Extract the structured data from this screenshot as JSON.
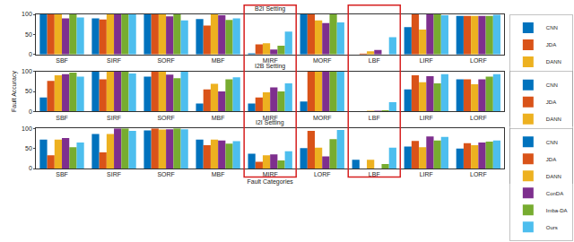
{
  "chart_data": [
    {
      "type": "bar",
      "title": "B2I Setting",
      "categories": [
        "SBF",
        "SIRF",
        "SORF",
        "MBF",
        "MIRF",
        "MORF",
        "LBF",
        "LIRF",
        "LORF"
      ],
      "series": [
        {
          "name": "CNN",
          "color": "#0072BD",
          "values": [
            100,
            90,
            100,
            88,
            3,
            100,
            0,
            68,
            96
          ]
        },
        {
          "name": "JDA",
          "color": "#D95319",
          "values": [
            100,
            87,
            100,
            72,
            25,
            100,
            2,
            100,
            96
          ]
        },
        {
          "name": "DANN",
          "color": "#EDB120",
          "values": [
            100,
            100,
            100,
            100,
            28,
            85,
            8,
            62,
            96
          ]
        },
        {
          "name": "ConDA",
          "color": "#7E2F8E",
          "values": [
            90,
            100,
            95,
            98,
            12,
            78,
            11,
            100,
            96
          ]
        },
        {
          "name": "Imba-DA",
          "color": "#77AC30",
          "values": [
            100,
            100,
            100,
            86,
            22,
            100,
            0,
            100,
            96
          ]
        },
        {
          "name": "Ours",
          "color": "#4DBEEE",
          "values": [
            92,
            100,
            85,
            90,
            57,
            80,
            43,
            98,
            99
          ]
        }
      ],
      "ylim": [
        0,
        100
      ],
      "yticks": [
        0,
        50,
        100
      ],
      "grid": false,
      "legend": "right"
    },
    {
      "type": "bar",
      "title": "I2B Setting",
      "y_label": "Fault Accuracy",
      "categories": [
        "SBF",
        "SIRF",
        "SORF",
        "MBF",
        "MIRF",
        "MORF",
        "LBF",
        "LIRF",
        "LORF"
      ],
      "series": [
        {
          "name": "CNN",
          "color": "#0072BD",
          "values": [
            35,
            100,
            87,
            20,
            20,
            25,
            0,
            55,
            80
          ]
        },
        {
          "name": "JDA",
          "color": "#D95319",
          "values": [
            76,
            80,
            100,
            55,
            35,
            100,
            0,
            90,
            80
          ]
        },
        {
          "name": "DANN",
          "color": "#EDB120",
          "values": [
            90,
            100,
            100,
            69,
            48,
            100,
            2,
            73,
            68
          ]
        },
        {
          "name": "ConDA",
          "color": "#7E2F8E",
          "values": [
            93,
            100,
            92,
            50,
            60,
            100,
            2,
            88,
            80
          ]
        },
        {
          "name": "Imba-DA",
          "color": "#77AC30",
          "values": [
            97,
            100,
            83,
            80,
            50,
            100,
            3,
            70,
            87
          ]
        },
        {
          "name": "Ours",
          "color": "#4DBEEE",
          "values": [
            87,
            95,
            100,
            85,
            70,
            100,
            23,
            93,
            93
          ]
        }
      ],
      "ylim": [
        0,
        100
      ],
      "yticks": [
        0,
        50,
        100
      ],
      "grid": false,
      "legend": "right"
    },
    {
      "type": "bar",
      "title": "I2I Setting",
      "x_label": "Fault Categories",
      "categories": [
        "SBF",
        "SIRF",
        "SORF",
        "MBF",
        "MIRF",
        "LORF",
        "LBF",
        "LIRF",
        "LORF"
      ],
      "series": [
        {
          "name": "CNN",
          "color": "#0072BD",
          "values": [
            72,
            86,
            95,
            72,
            37,
            51,
            22,
            55,
            50
          ]
        },
        {
          "name": "JDA",
          "color": "#D95319",
          "values": [
            33,
            40,
            100,
            58,
            17,
            94,
            0,
            69,
            63
          ]
        },
        {
          "name": "DANN",
          "color": "#EDB120",
          "values": [
            72,
            86,
            97,
            72,
            33,
            52,
            22,
            53,
            58
          ]
        },
        {
          "name": "ConDA",
          "color": "#7E2F8E",
          "values": [
            76,
            100,
            98,
            70,
            35,
            30,
            0,
            80,
            65
          ]
        },
        {
          "name": "Imba-DA",
          "color": "#77AC30",
          "values": [
            53,
            100,
            100,
            62,
            20,
            73,
            11,
            70,
            67
          ]
        },
        {
          "name": "Ours",
          "color": "#4DBEEE",
          "values": [
            65,
            94,
            98,
            68,
            43,
            96,
            52,
            79,
            70
          ]
        }
      ],
      "ylim": [
        0,
        100
      ],
      "yticks": [
        0,
        50,
        100
      ],
      "grid": false,
      "legend": "right"
    }
  ]
}
